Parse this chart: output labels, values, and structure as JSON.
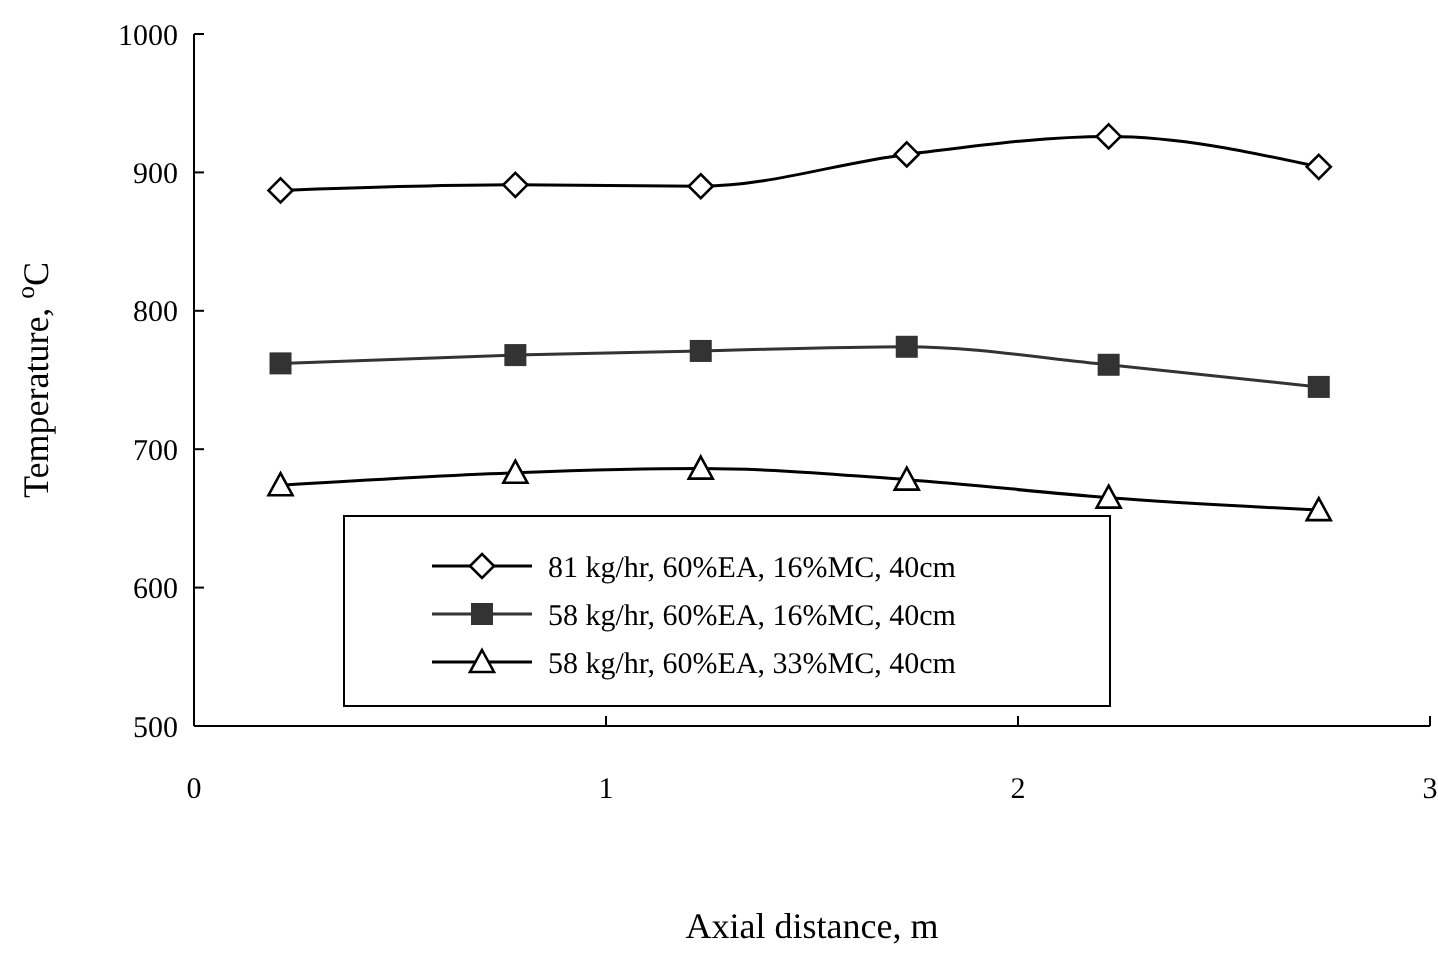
{
  "chart_data": {
    "type": "line",
    "xlabel": "Axial distance, m",
    "ylabel": "Temperature, $^{o}$C",
    "xlim": [
      0,
      3
    ],
    "xticks": [
      0,
      1,
      2,
      3
    ],
    "ylim": [
      500,
      1000
    ],
    "yticks": [
      500,
      600,
      700,
      800,
      900,
      1000
    ],
    "grid": false,
    "legend": "bottom",
    "series": [
      {
        "name": "81 kg/hr, 60%EA, 16%MC, 40cm",
        "color": "#000000",
        "marker": "diamond",
        "x": [
          0.21,
          0.78,
          1.23,
          1.73,
          2.22,
          2.73
        ],
        "values": [
          887,
          891,
          890,
          913,
          926,
          904
        ]
      },
      {
        "name": "58 kg/hr, 60%EA, 16%MC, 40cm",
        "color": "#333333",
        "marker": "square",
        "x": [
          0.21,
          0.78,
          1.23,
          1.73,
          2.22,
          2.73
        ],
        "values": [
          762,
          768,
          771,
          774,
          761,
          745
        ]
      },
      {
        "name": "58 kg/hr, 60%EA, 33%MC, 40cm",
        "color": "#000000",
        "marker": "triangle",
        "x": [
          0.21,
          0.78,
          1.23,
          1.73,
          2.22,
          2.73
        ],
        "values": [
          674,
          683,
          686,
          678,
          665,
          656
        ]
      }
    ]
  }
}
